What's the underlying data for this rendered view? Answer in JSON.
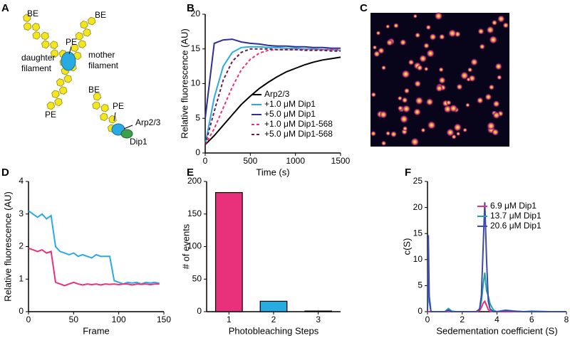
{
  "panel_labels": [
    "A",
    "B",
    "C",
    "D",
    "E",
    "F"
  ],
  "diagram": {
    "labels": [
      "BE",
      "BE",
      "PE",
      "mother",
      "filament",
      "daughter",
      "filament",
      "PE",
      "BE",
      "PE",
      "Arp2/3",
      "Dip1"
    ]
  },
  "chart_data": [
    {
      "type": "line",
      "ylabel": "Relative fluorescence (AU)",
      "xlabel": "Time (s)",
      "x": [
        0,
        100,
        200,
        300,
        400,
        500,
        600,
        700,
        800,
        900,
        1000,
        1100,
        1200,
        1300,
        1400,
        1500
      ],
      "xlim": [
        0,
        1500
      ],
      "xticks": [
        0,
        500,
        1000,
        1500
      ],
      "ylim": [
        0,
        20
      ],
      "yticks": [
        0,
        5,
        10,
        15,
        20
      ],
      "legend": "lower right",
      "series": [
        {
          "name": "Arp2/3",
          "color": "#000000",
          "dashed": false,
          "values": [
            1.2,
            2.5,
            4,
            5.5,
            7,
            8.2,
            9.3,
            10.2,
            11,
            11.7,
            12.2,
            12.7,
            13.1,
            13.4,
            13.6,
            13.8
          ]
        },
        {
          "name": "+1.0 μM Dip1",
          "color": "#29abe2",
          "dashed": false,
          "values": [
            1.2,
            8,
            12.5,
            14.5,
            15.2,
            15.3,
            15.3,
            15.2,
            15.2,
            15.1,
            15.1,
            15,
            15,
            14.9,
            14.9,
            14.8
          ]
        },
        {
          "name": "+5.0 μM Dip1",
          "color": "#2e3192",
          "dashed": false,
          "values": [
            5,
            15.8,
            16.3,
            16.4,
            16,
            15.8,
            15.7,
            15.5,
            15.4,
            15.4,
            15.3,
            15.3,
            15.2,
            15.2,
            15.1,
            15.1
          ]
        },
        {
          "name": "+1.0 μM Dip1-568",
          "color": "#e8317a",
          "dashed": true,
          "values": [
            1.2,
            3.5,
            6.5,
            9.5,
            12,
            13.5,
            14.4,
            14.8,
            14.9,
            14.9,
            14.9,
            14.9,
            14.9,
            14.9,
            14.9,
            14.9
          ]
        },
        {
          "name": "+5.0 μM Dip1-568",
          "color": "#6b1a4a",
          "dashed": true,
          "values": [
            1.2,
            6,
            10.5,
            13.2,
            14.5,
            15,
            15,
            15,
            14.9,
            14.9,
            14.9,
            14.8,
            14.8,
            14.8,
            14.7,
            14.7
          ]
        }
      ]
    },
    {
      "type": "line",
      "ylabel": "Relative fluorescence (AU)",
      "xlabel": "Frame",
      "x": [
        0,
        5,
        10,
        15,
        20,
        25,
        30,
        35,
        40,
        45,
        50,
        55,
        60,
        65,
        70,
        75,
        80,
        85,
        90,
        95,
        100,
        105,
        110,
        115,
        120,
        125,
        130,
        135,
        140,
        145
      ],
      "xlim": [
        0,
        150
      ],
      "xticks": [
        0,
        50,
        100,
        150
      ],
      "ylim": [
        0,
        4
      ],
      "yticks": [
        0,
        1,
        2,
        3,
        4
      ],
      "series": [
        {
          "color": "#29abe2",
          "dashed": false,
          "values": [
            3.1,
            3.0,
            2.9,
            3.0,
            2.85,
            2.95,
            2.0,
            1.85,
            1.8,
            1.75,
            1.8,
            1.7,
            1.75,
            1.7,
            1.65,
            1.75,
            1.7,
            1.7,
            1.7,
            0.95,
            0.9,
            0.85,
            0.9,
            0.88,
            0.9,
            0.85,
            0.9,
            0.88,
            0.9,
            0.87
          ]
        },
        {
          "color": "#e8317a",
          "dashed": false,
          "values": [
            1.95,
            1.9,
            1.85,
            1.9,
            1.8,
            1.85,
            0.9,
            0.85,
            0.8,
            0.85,
            0.9,
            0.85,
            0.82,
            0.85,
            0.83,
            0.85,
            0.82,
            0.85,
            0.84,
            0.85,
            0.83,
            0.85,
            0.85,
            0.82,
            0.85,
            0.84,
            0.85,
            0.83,
            0.85,
            0.85
          ]
        }
      ]
    },
    {
      "type": "bar",
      "ylabel": "# of events",
      "xlabel": "Photobleaching Steps",
      "categories": [
        "1",
        "2",
        "3"
      ],
      "values": [
        183,
        16,
        1
      ],
      "colors": [
        "#e8317a",
        "#29abe2",
        "#e8317a"
      ],
      "ylim": [
        0,
        200
      ],
      "yticks": [
        0,
        50,
        100,
        150,
        200
      ]
    },
    {
      "type": "line",
      "ylabel": "c(S)",
      "xlabel": "Sedementation coefficient (S)",
      "x": [
        0,
        0.05,
        0.1,
        0.2,
        0.5,
        1,
        1.2,
        1.4,
        1.6,
        2,
        2.5,
        2.8,
        3,
        3.1,
        3.2,
        3.3,
        3.4,
        3.5,
        3.6,
        3.8,
        4,
        4.5,
        5,
        5.5,
        6,
        7,
        8
      ],
      "xlim": [
        0,
        8
      ],
      "xticks": [
        0,
        2,
        4,
        6,
        8
      ],
      "ylim": [
        0,
        25
      ],
      "yticks": [
        0,
        5,
        10,
        15,
        20,
        25
      ],
      "legend": "upper right",
      "series": [
        {
          "name": "6.9 μM Dip1",
          "color": "#e8317a",
          "dashed": false,
          "values": [
            0,
            0,
            0,
            0,
            0,
            0,
            0.1,
            0,
            0,
            0,
            0,
            0,
            0.2,
            0.8,
            1.6,
            2,
            1.2,
            0.4,
            0.1,
            0,
            0,
            0,
            0,
            0,
            0,
            0,
            0
          ]
        },
        {
          "name": "13.7 μM Dip1",
          "color": "#1fa3b0",
          "dashed": false,
          "values": [
            0,
            10,
            2,
            0,
            0,
            0,
            0.6,
            0.1,
            0,
            0,
            0,
            0,
            0.5,
            2,
            5,
            7.5,
            4,
            3,
            1.5,
            0.3,
            0,
            0.3,
            0.1,
            0,
            0.1,
            0,
            0
          ]
        },
        {
          "name": "20.6 μM Dip1",
          "color": "#3f4aa8",
          "dashed": false,
          "values": [
            0,
            14.7,
            3,
            0,
            0,
            0,
            0.3,
            0,
            0,
            0,
            0,
            0,
            0.5,
            3,
            12,
            21,
            10,
            2,
            0.5,
            0,
            0,
            0.2,
            0.1,
            0,
            0,
            0,
            0
          ]
        }
      ]
    }
  ]
}
